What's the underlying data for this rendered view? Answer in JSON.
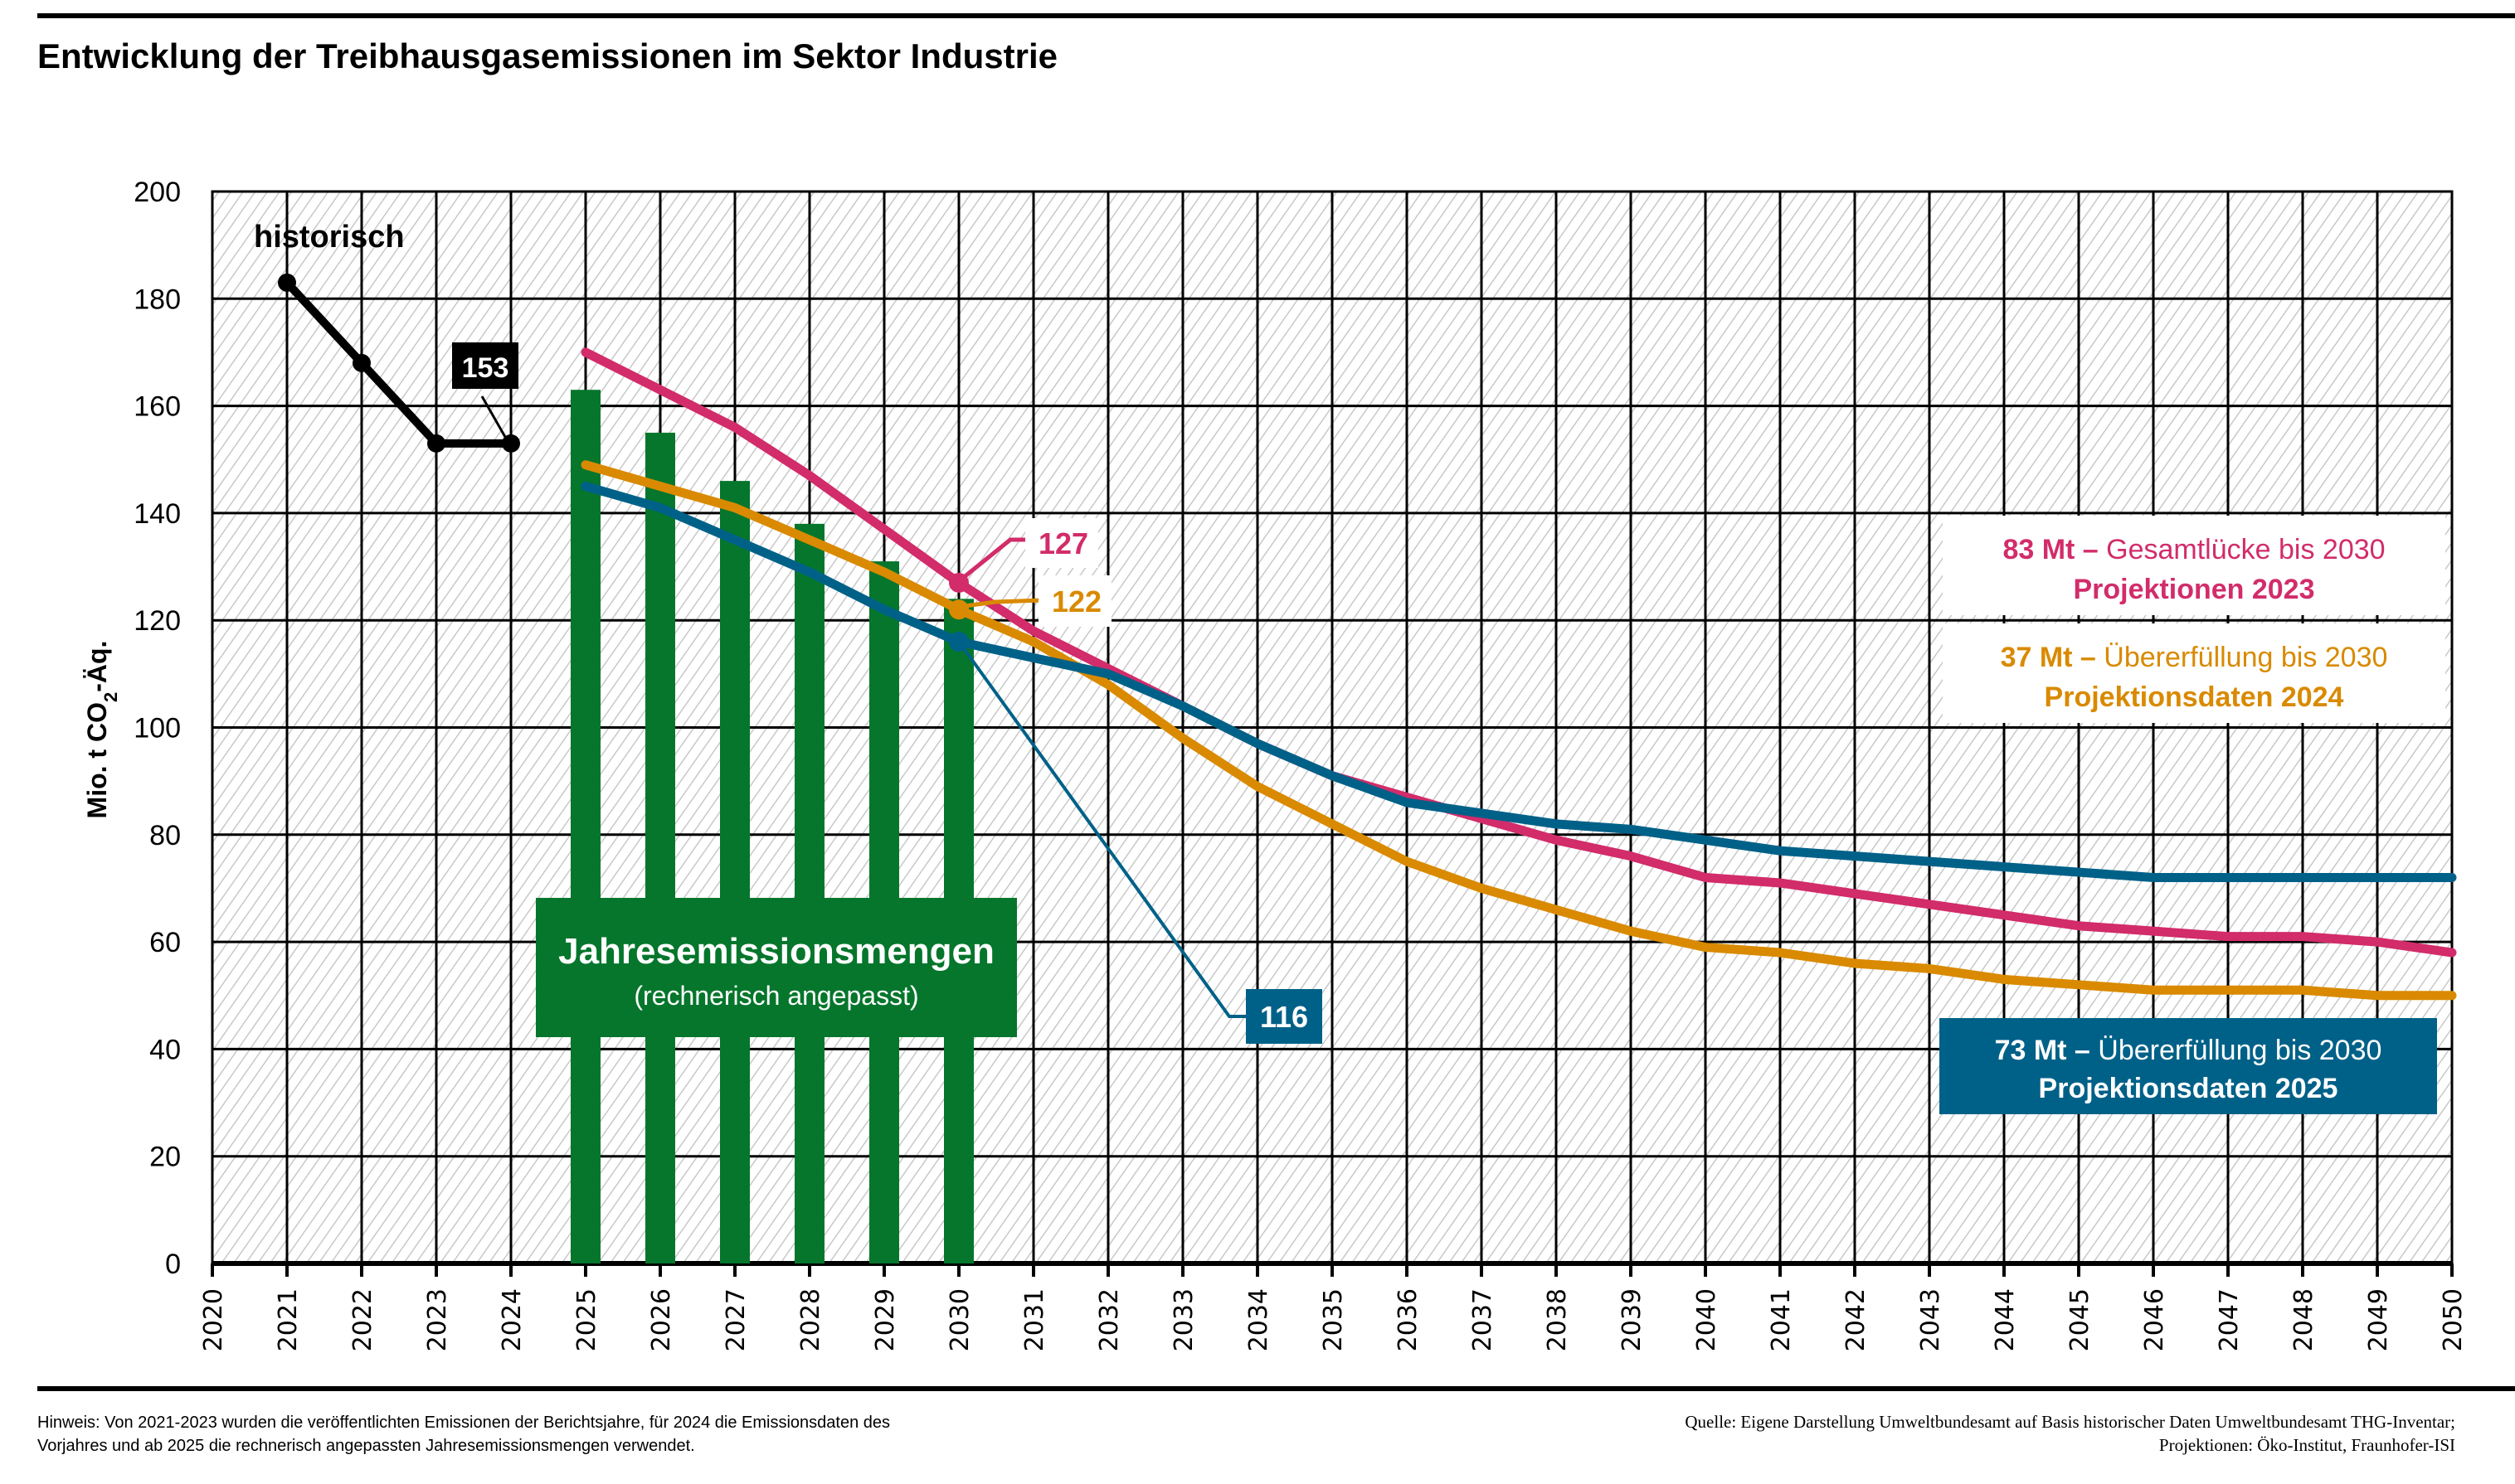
{
  "chart_data": {
    "type": "bar+line",
    "title": "Entwicklung der Treibhausgasemissionen im Sektor Industrie",
    "xlabel": "",
    "ylabel": "Mio. t CO2-Äq.",
    "ylabel_parts": {
      "pre": "Mio. t CO",
      "sub": "2",
      "post": "-Äq."
    },
    "xlim": [
      2020,
      2050
    ],
    "ylim": [
      0,
      200
    ],
    "yticks": [
      0,
      20,
      40,
      60,
      80,
      100,
      120,
      140,
      160,
      180,
      200
    ],
    "xticks": [
      2020,
      2021,
      2022,
      2023,
      2024,
      2025,
      2026,
      2027,
      2028,
      2029,
      2030,
      2031,
      2032,
      2033,
      2034,
      2035,
      2036,
      2037,
      2038,
      2039,
      2040,
      2041,
      2042,
      2043,
      2044,
      2045,
      2046,
      2047,
      2048,
      2049,
      2050
    ],
    "grid": true,
    "colors": {
      "historical": "#000000",
      "bars": "#05762C",
      "proj2023": "#D22C6A",
      "proj2024": "#D98A00",
      "proj2025": "#006188"
    },
    "bars": {
      "name": "Jahresemissionsmengen (rechnerisch angepasst)",
      "x": [
        2025,
        2026,
        2027,
        2028,
        2029,
        2030
      ],
      "values": [
        163,
        155,
        146,
        138,
        131,
        124
      ]
    },
    "series": [
      {
        "name": "historisch",
        "key": "historical",
        "x": [
          2021,
          2022,
          2023,
          2024
        ],
        "values": [
          183,
          168,
          153,
          153
        ],
        "markers": true
      },
      {
        "name": "Projektionen 2023",
        "key": "proj2023",
        "x": [
          2025,
          2026,
          2027,
          2028,
          2029,
          2030,
          2031,
          2032,
          2033,
          2034,
          2035,
          2036,
          2037,
          2038,
          2039,
          2040,
          2041,
          2042,
          2043,
          2044,
          2045,
          2046,
          2047,
          2048,
          2049,
          2050
        ],
        "values": [
          170,
          163,
          156,
          147,
          137,
          127,
          118,
          111,
          104,
          97,
          91,
          87,
          83,
          79,
          76,
          72,
          71,
          69,
          67,
          65,
          63,
          62,
          61,
          61,
          60,
          58
        ]
      },
      {
        "name": "Projektionsdaten 2024",
        "key": "proj2024",
        "x": [
          2025,
          2026,
          2027,
          2028,
          2029,
          2030,
          2031,
          2032,
          2033,
          2034,
          2035,
          2036,
          2037,
          2038,
          2039,
          2040,
          2041,
          2042,
          2043,
          2044,
          2045,
          2046,
          2047,
          2048,
          2049,
          2050
        ],
        "values": [
          149,
          145,
          141,
          135,
          129,
          122,
          116,
          108,
          98,
          89,
          82,
          75,
          70,
          66,
          62,
          59,
          58,
          56,
          55,
          53,
          52,
          51,
          51,
          51,
          50,
          50
        ]
      },
      {
        "name": "Projektionsdaten 2025",
        "key": "proj2025",
        "x": [
          2025,
          2026,
          2027,
          2028,
          2029,
          2030,
          2031,
          2032,
          2033,
          2034,
          2035,
          2036,
          2037,
          2038,
          2039,
          2040,
          2041,
          2042,
          2043,
          2044,
          2045,
          2046,
          2047,
          2048,
          2049,
          2050
        ],
        "values": [
          145,
          141,
          135,
          129,
          122,
          116,
          113,
          110,
          104,
          97,
          91,
          86,
          84,
          82,
          81,
          79,
          77,
          76,
          75,
          74,
          73,
          72,
          72,
          72,
          72,
          72
        ]
      }
    ],
    "annotations": {
      "historical_label": "historisch",
      "value_labels": [
        {
          "text": "153",
          "series": "historical",
          "x": 2024,
          "y": 153
        },
        {
          "text": "127",
          "series": "proj2023",
          "x": 2030,
          "y": 127
        },
        {
          "text": "122",
          "series": "proj2024",
          "x": 2030,
          "y": 122
        },
        {
          "text": "116",
          "series": "proj2025",
          "x": 2030,
          "y": 116
        }
      ],
      "bar_label": {
        "title": "Jahresemissionsmengen",
        "subtitle": "(rechnerisch angepasst)"
      },
      "boxes": [
        {
          "key": "proj2023",
          "amount": "83 Mt –",
          "text": " Gesamtlücke bis 2030",
          "line2": "Projektionen 2023"
        },
        {
          "key": "proj2024",
          "amount": "37 Mt –",
          "text": " Übererfüllung bis 2030",
          "line2": "Projektionsdaten 2024"
        },
        {
          "key": "proj2025",
          "amount": "73 Mt –",
          "text": " Übererfüllung bis 2030",
          "line2": "Projektionsdaten 2025"
        }
      ]
    }
  },
  "footer": {
    "note_line1": "Hinweis: Von 2021-2023 wurden die veröffentlichten Emissionen der Berichtsjahre, für 2024 die Emissionsdaten des",
    "note_line2": "Vorjahres und ab 2025 die rechnerisch angepassten Jahresemissionsmengen verwendet.",
    "source_line1": "Quelle: Eigene Darstellung Umweltbundesamt auf Basis historischer Daten Umweltbundesamt THG-Inventar;",
    "source_line2": "Projektionen: Öko-Institut, Fraunhofer-ISI"
  }
}
